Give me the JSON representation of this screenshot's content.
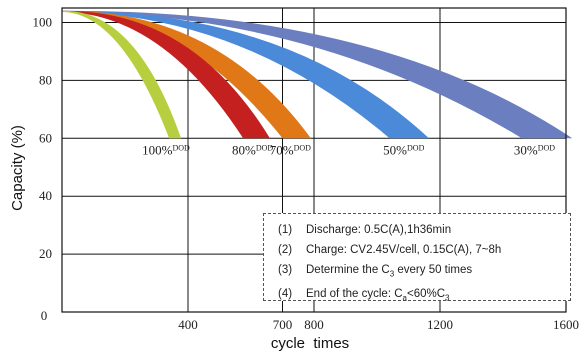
{
  "chart_data": {
    "type": "area",
    "ylabel": "Capacity (%)",
    "xlabel": "cycle  times",
    "xlim": [
      0,
      1600
    ],
    "ylim": [
      0,
      105
    ],
    "x_ticks": [
      400,
      700,
      800,
      1200,
      1600
    ],
    "x_tick_labels": [
      "400",
      "700",
      "800",
      "1200",
      "1600"
    ],
    "y_ticks": [
      0,
      20,
      40,
      60,
      80,
      100
    ],
    "y_tick_labels": [
      "0",
      "20",
      "40",
      "60",
      "80",
      "100"
    ],
    "x_origin_label": "0",
    "grid": true,
    "series": [
      {
        "name": "100%DOD",
        "label_main": "100%",
        "label_sub": "DOD",
        "color": "#b7cf3f",
        "start": [
          0,
          104
        ],
        "end_at_60": [
          340,
          378
        ],
        "label_x": 330
      },
      {
        "name": "80%DOD",
        "label_main": "80%",
        "label_sub": "DOD",
        "color": "#c42020",
        "start": [
          0,
          104
        ],
        "end_at_60": [
          575,
          660
        ],
        "label_x": 605
      },
      {
        "name": "70%DOD",
        "label_main": "70%",
        "label_sub": "DOD",
        "color": "#e07818",
        "start": [
          0,
          104
        ],
        "end_at_60": [
          700,
          790
        ],
        "label_x": 725
      },
      {
        "name": "50%DOD",
        "label_main": "50%",
        "label_sub": "DOD",
        "color": "#4b8ad8",
        "start": [
          0,
          104
        ],
        "end_at_60": [
          1040,
          1165
        ],
        "label_x": 1085
      },
      {
        "name": "30%DOD",
        "label_main": "30%",
        "label_sub": "DOD",
        "color": "#6b7fc0",
        "start": [
          0,
          104
        ],
        "end_at_60": [
          1460,
          1620
        ],
        "label_x": 1500
      }
    ]
  },
  "notes": {
    "n1_num": "(1)",
    "n1_text": "Discharge: 0.5C(A),1h36min",
    "n2_num": "(2)",
    "n2_text": "Charge: CV2.45V/cell, 0.15C(A), 7~8h",
    "n3_num": "(3)",
    "n3_text_a": "Determine the C",
    "n3_sub": "3",
    "n3_text_b": " every 50 times",
    "n4_num": "(4)",
    "n4_text_a": "End of the cycle: C",
    "n4_sub_a": "a",
    "n4_text_b": "<60%C",
    "n4_sub_b": "3"
  }
}
